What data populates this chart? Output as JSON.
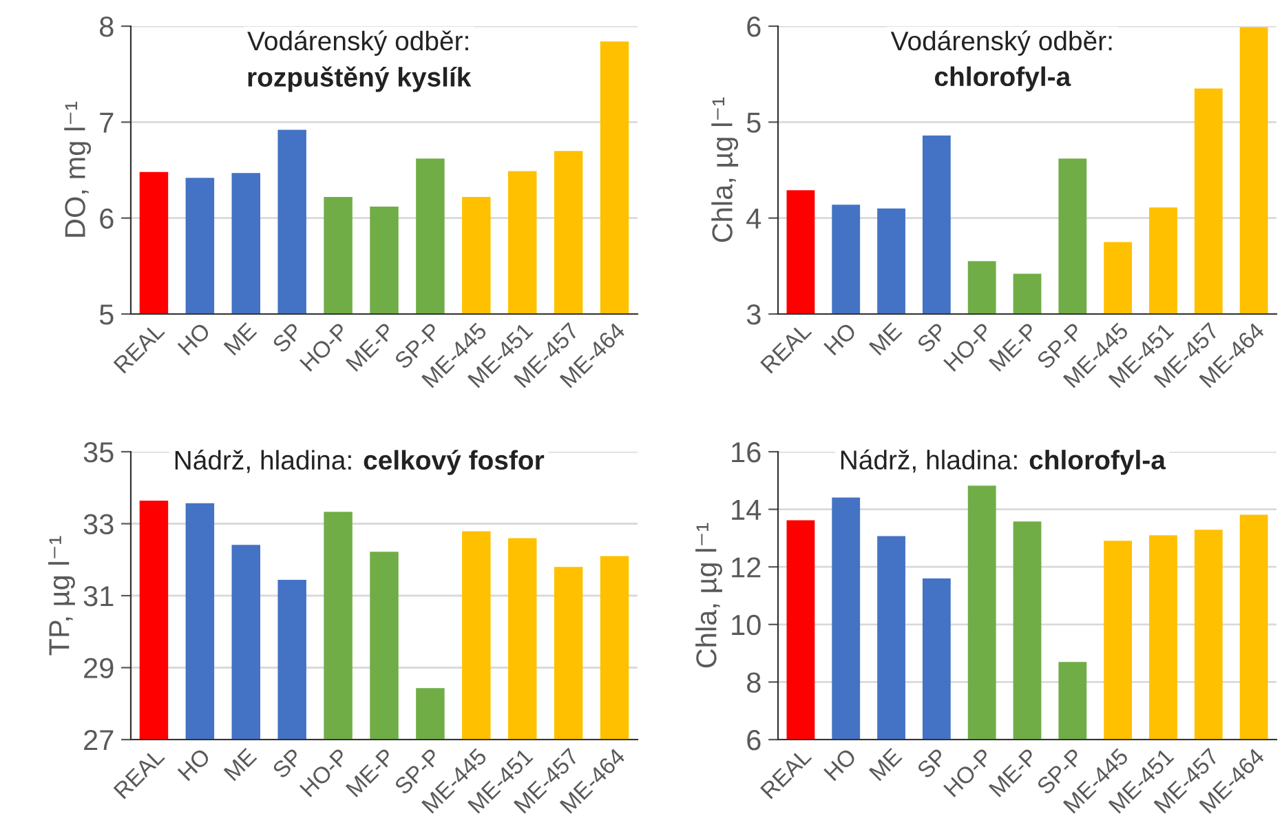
{
  "chart_data": [
    {
      "type": "bar",
      "title": "Vodárenský odběr:",
      "subtitle": "rozpuštěný kyslík",
      "ylabel": "DO, mg l⁻¹",
      "categories": [
        "REAL",
        "HO",
        "ME",
        "SP",
        "HO-P",
        "ME-P",
        "SP-P",
        "ME-445",
        "ME-451",
        "ME-457",
        "ME-464"
      ],
      "values": [
        6.48,
        6.42,
        6.47,
        6.92,
        6.22,
        6.12,
        6.62,
        6.22,
        6.49,
        6.7,
        7.84
      ],
      "colors": [
        "#ff0000",
        "#4472c4",
        "#4472c4",
        "#4472c4",
        "#70ad47",
        "#70ad47",
        "#70ad47",
        "#ffc000",
        "#ffc000",
        "#ffc000",
        "#ffc000"
      ],
      "ylim": [
        5,
        8
      ],
      "yticks": [
        5,
        6,
        7,
        8
      ],
      "grid": "y"
    },
    {
      "type": "bar",
      "title": "Vodárenský odběr:",
      "subtitle": "chlorofyl-a",
      "ylabel": "Chla, µg l⁻¹",
      "categories": [
        "REAL",
        "HO",
        "ME",
        "SP",
        "HO-P",
        "ME-P",
        "SP-P",
        "ME-445",
        "ME-451",
        "ME-457",
        "ME-464"
      ],
      "values": [
        4.29,
        4.14,
        4.1,
        4.86,
        3.55,
        3.42,
        4.62,
        3.75,
        4.11,
        5.35,
        5.99
      ],
      "colors": [
        "#ff0000",
        "#4472c4",
        "#4472c4",
        "#4472c4",
        "#70ad47",
        "#70ad47",
        "#70ad47",
        "#ffc000",
        "#ffc000",
        "#ffc000",
        "#ffc000"
      ],
      "ylim": [
        3,
        6
      ],
      "yticks": [
        3,
        4,
        5,
        6
      ],
      "grid": "y"
    },
    {
      "type": "bar",
      "title": "Nádrž, hladina:",
      "subtitle": "celkový fosfor",
      "ylabel": "TP, µg l⁻¹",
      "categories": [
        "REAL",
        "HO",
        "ME",
        "SP",
        "HO-P",
        "ME-P",
        "SP-P",
        "ME-445",
        "ME-451",
        "ME-457",
        "ME-464"
      ],
      "values": [
        33.64,
        33.57,
        32.41,
        31.44,
        33.33,
        32.22,
        28.43,
        32.79,
        32.6,
        31.8,
        32.1
      ],
      "colors": [
        "#ff0000",
        "#4472c4",
        "#4472c4",
        "#4472c4",
        "#70ad47",
        "#70ad47",
        "#70ad47",
        "#ffc000",
        "#ffc000",
        "#ffc000",
        "#ffc000"
      ],
      "ylim": [
        27,
        35
      ],
      "yticks": [
        27,
        29,
        31,
        33,
        35
      ],
      "grid": "y"
    },
    {
      "type": "bar",
      "title": "Nádrž, hladina:",
      "subtitle": "chlorofyl-a",
      "ylabel": "Chla, µg l⁻¹",
      "categories": [
        "REAL",
        "HO",
        "ME",
        "SP",
        "HO-P",
        "ME-P",
        "SP-P",
        "ME-445",
        "ME-451",
        "ME-457",
        "ME-464"
      ],
      "values": [
        13.62,
        14.41,
        13.07,
        11.6,
        14.82,
        13.58,
        8.7,
        12.91,
        13.1,
        13.29,
        13.81
      ],
      "colors": [
        "#ff0000",
        "#4472c4",
        "#4472c4",
        "#4472c4",
        "#70ad47",
        "#70ad47",
        "#70ad47",
        "#ffc000",
        "#ffc000",
        "#ffc000",
        "#ffc000"
      ],
      "ylim": [
        6,
        16
      ],
      "yticks": [
        6,
        8,
        10,
        12,
        14,
        16
      ],
      "grid": "y"
    }
  ]
}
